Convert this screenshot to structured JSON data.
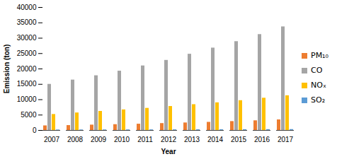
{
  "chart_data": {
    "type": "bar",
    "x_label": "Year",
    "y_label": "Emission (ton)",
    "categories": [
      "2007",
      "2008",
      "2009",
      "2010",
      "2011",
      "2012",
      "2013",
      "2014",
      "2015",
      "2016",
      "2017"
    ],
    "series": [
      {
        "name": "PM₁₀",
        "color": "#ed7d31",
        "values": [
          1500,
          1600,
          1750,
          1900,
          2050,
          2250,
          2450,
          2650,
          2900,
          3150,
          3450
        ]
      },
      {
        "name": "CO",
        "color": "#a5a5a5",
        "values": [
          15000,
          16400,
          17800,
          19300,
          21000,
          22800,
          24800,
          26800,
          28900,
          31200,
          33700
        ]
      },
      {
        "name": "NOₓ",
        "color": "#ffc000",
        "values": [
          5200,
          5700,
          6200,
          6700,
          7200,
          7800,
          8400,
          9000,
          9700,
          10500,
          11300
        ]
      },
      {
        "name": "SO₂",
        "color": "#5b9bd5",
        "values": [
          150,
          160,
          170,
          180,
          190,
          200,
          220,
          230,
          250,
          270,
          290
        ]
      }
    ],
    "ylim": [
      0,
      40000
    ],
    "yticks": [
      0,
      5000,
      10000,
      15000,
      20000,
      25000,
      30000,
      35000,
      40000
    ],
    "grid": false,
    "legend": "right"
  }
}
